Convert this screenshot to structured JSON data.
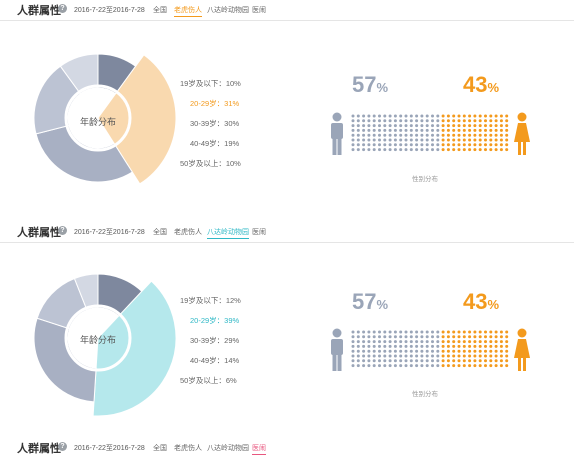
{
  "headers": [
    {
      "title": "人群属性",
      "help": "?",
      "date": "2016-7-22至2016-7-28",
      "tabs": [
        {
          "label": "全国",
          "active": false
        },
        {
          "label": "老虎伤人",
          "active": true,
          "color": "#f39a1d"
        },
        {
          "label": "八达岭动物园",
          "active": false
        },
        {
          "label": "医闹",
          "active": false
        }
      ]
    },
    {
      "title": "人群属性",
      "help": "?",
      "date": "2016-7-22至2016-7-28",
      "tabs": [
        {
          "label": "全国",
          "active": false
        },
        {
          "label": "老虎伤人",
          "active": false
        },
        {
          "label": "八达岭动物园",
          "active": true,
          "color": "#2fb8c6"
        },
        {
          "label": "医闹",
          "active": false
        }
      ]
    },
    {
      "title": "人群属性",
      "help": "?",
      "date": "2016-7-22至2016-7-28",
      "tabs": [
        {
          "label": "全国",
          "active": false
        },
        {
          "label": "老虎伤人",
          "active": false
        },
        {
          "label": "八达岭动物园",
          "active": false
        },
        {
          "label": "医闹",
          "active": true,
          "color": "#e8577f"
        }
      ]
    }
  ],
  "panels": [
    {
      "donut_label": "年龄分布",
      "accent": "#f9d5a7",
      "highlight_color": "#f39a1d",
      "age_groups": [
        {
          "label": "19岁及以下：10%",
          "value": 10,
          "color": "#7e889e",
          "highlight": false
        },
        {
          "label": "20-29岁：31%",
          "value": 31,
          "color": "#f9d5a7",
          "highlight": true
        },
        {
          "label": "30-39岁：30%",
          "value": 30,
          "color": "#a8b0c3",
          "highlight": false
        },
        {
          "label": "40-49岁：19%",
          "value": 19,
          "color": "#bcc3d3",
          "highlight": false
        },
        {
          "label": "50岁及以上：10%",
          "value": 10,
          "color": "#d3d8e3",
          "highlight": false
        }
      ],
      "gender": {
        "male_pct": "57",
        "female_pct": "43",
        "pct_unit": "%",
        "male_share": 0.57,
        "male_color": "#9aa5b8",
        "female_color": "#f39a1d",
        "caption": "性别分布"
      }
    },
    {
      "donut_label": "年龄分布",
      "accent": "#aee6ea",
      "highlight_color": "#2fb8c6",
      "age_groups": [
        {
          "label": "19岁及以下：12%",
          "value": 12,
          "color": "#7e889e",
          "highlight": false
        },
        {
          "label": "20-29岁：39%",
          "value": 39,
          "color": "#aee6ea",
          "highlight": true
        },
        {
          "label": "30-39岁：29%",
          "value": 29,
          "color": "#a8b0c3",
          "highlight": false
        },
        {
          "label": "40-49岁：14%",
          "value": 14,
          "color": "#bcc3d3",
          "highlight": false
        },
        {
          "label": "50岁及以上：6%",
          "value": 6,
          "color": "#d3d8e3",
          "highlight": false
        }
      ],
      "gender": {
        "male_pct": "57",
        "female_pct": "43",
        "pct_unit": "%",
        "male_share": 0.57,
        "male_color": "#9aa5b8",
        "female_color": "#f39a1d",
        "caption": "性别分布"
      }
    }
  ]
}
